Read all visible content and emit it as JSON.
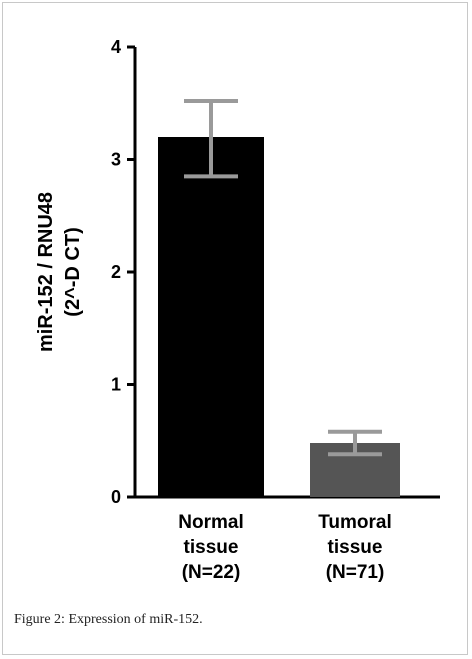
{
  "chart_data": {
    "type": "bar",
    "categories": [
      [
        "Normal",
        "tissue",
        "(N=22)"
      ],
      [
        "Tumoral",
        "tissue",
        "(N=71)"
      ]
    ],
    "values": [
      3.2,
      0.48
    ],
    "error_high": [
      3.52,
      0.58
    ],
    "error_low": [
      2.85,
      0.38
    ],
    "bar_colors": [
      "#000000",
      "#555555"
    ],
    "error_color": "#9a9a9a",
    "ylabel_lines": [
      "miR-152 / RNU48",
      "(2^-D CT)"
    ],
    "ylim": [
      0,
      4
    ],
    "yticks": [
      0,
      1,
      2,
      3,
      4
    ],
    "grid": false
  },
  "caption": {
    "label": "Figure 2:",
    "text": " Expression of miR-152."
  }
}
